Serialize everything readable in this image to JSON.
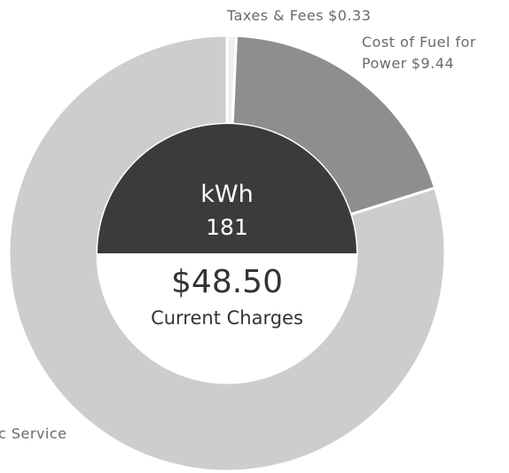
{
  "chart_data": {
    "type": "donut",
    "categories": [
      "Taxes & Fees",
      "Cost of Fuel for Power",
      "c Service"
    ],
    "values": [
      0.33,
      9.44,
      38.73
    ],
    "value_labels": [
      "$0.33",
      "$9.44",
      null
    ],
    "colors": [
      "#efefef",
      "#8e8e8e",
      "#cdcdcd"
    ],
    "center": {
      "unit": "kWh",
      "usage": 181,
      "total": 48.5,
      "total_label": "$48.50",
      "caption": "Current Charges"
    }
  }
}
